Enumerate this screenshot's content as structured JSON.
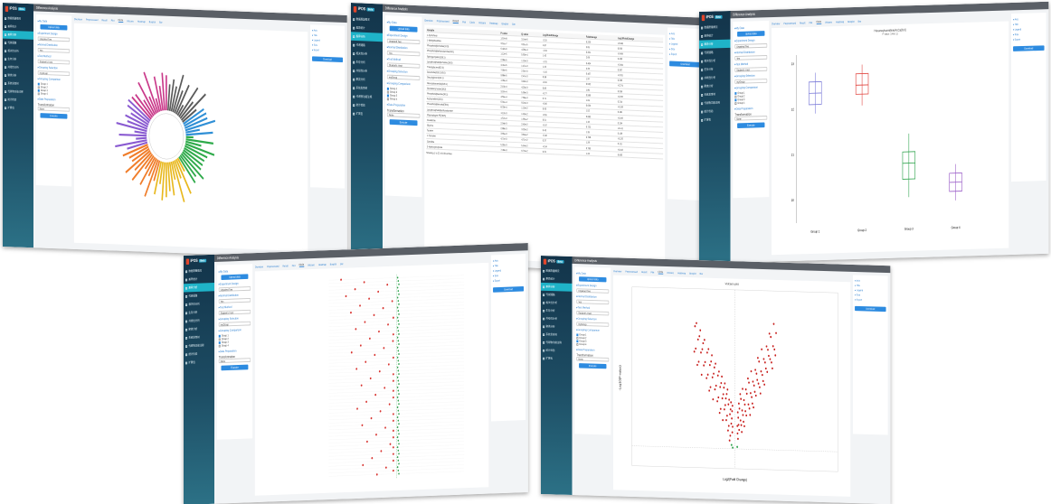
{
  "app": {
    "logo": "iPOS",
    "logo_tag": "Beta",
    "header_title": "Difference Analysis"
  },
  "sidebar_items": [
    "数据质量概况",
    "差异统计",
    "差异分析",
    "代谢通路",
    "相关性分析",
    "生存分析",
    "共线性分析",
    "聚类分析",
    "系统发育树",
    "代谢物功能注释",
    "统计检验",
    "扩展包"
  ],
  "panel": {
    "my_data": "My Data",
    "upload": "Upload data",
    "exp_design": "Experiment Design",
    "exp_value": "Unpaired Two",
    "normal": "Normal Distribution",
    "normal_value": "Yes",
    "test": "Test Method",
    "test_value": "Student's t test",
    "grouping": "Grouping Selection",
    "grouping_value": "myGroup",
    "comparison": "Grouping Comparison",
    "groups": [
      "Group 1",
      "Group 2",
      "Group 3",
      "Group 4"
    ],
    "prep": "Data Preparation",
    "transform": "Transformation",
    "transform_value": "None",
    "execute": "Execute"
  },
  "tabs": [
    "Overview",
    "Preprocessed",
    "Result",
    "Plot",
    "Circle",
    "Volcano",
    "Heatmap",
    "Boxplot",
    "Bar"
  ],
  "options": {
    "items": [
      "Axis",
      "Title",
      "Legend",
      "Size",
      "Export"
    ],
    "download": "Download"
  },
  "table": {
    "headers": [
      "Variable",
      "P-value",
      "Q-value",
      "Log2FoldChange",
      "FoldChange",
      "Log10FoldChange"
    ],
    "rows": [
      [
        "1-Cyclohexy",
        "1.57e-8",
        "3.14e-6",
        "-2.15",
        "0.225",
        "-0.648"
      ],
      [
        "1-Methylhistidine",
        "3.51e-7",
        "3.51e-5",
        "1.87",
        "3.65",
        "0.563"
      ],
      [
        "Phosphatidylcholine(16:0)",
        "6.42e-6",
        "4.28e-4",
        "-1.64",
        "0.321",
        "-0.494"
      ],
      [
        "Phosphatidylethanolamine(18:1)",
        "1.12e-5",
        "5.60e-4",
        "1.43",
        "2.69",
        "0.430"
      ],
      [
        "Sphingomyelin(d18:1)",
        "2.98e-5",
        "1.19e-3",
        "-1.31",
        "0.404",
        "-0.394"
      ],
      [
        "Lysophosphatidylcholine(18:0)",
        "4.41e-5",
        "1.47e-3",
        "1.22",
        "2.33",
        "0.367"
      ],
      [
        "Triacylglycerol(52:2)",
        "7.05e-5",
        "2.01e-3",
        "-1.10",
        "0.467",
        "-0.331"
      ],
      [
        "Ceramide(d18:1/16:0)",
        "9.88e-5",
        "2.47e-3",
        "0.98",
        "1.97",
        "0.295"
      ],
      [
        "Diacylglycerol(34:1)",
        "1.36e-4",
        "3.02e-3",
        "-0.91",
        "0.532",
        "-0.274"
      ],
      [
        "Hexosylceramide(d18:1)",
        "2.10e-4",
        "4.20e-3",
        "0.85",
        "1.80",
        "0.256"
      ],
      [
        "Cholesteryl ester(18:2)",
        "3.07e-4",
        "5.58e-3",
        "-0.77",
        "0.586",
        "-0.232"
      ],
      [
        "Phosphatidylserine(36:1)",
        "4.55e-4",
        "7.58e-3",
        "0.71",
        "1.64",
        "0.214"
      ],
      [
        "Acylcarnitine(16:0)",
        "6.01e-4",
        "9.24e-3",
        "-0.66",
        "0.633",
        "-0.199"
      ],
      [
        "Phosphatidylinositol(38:4)",
        "8.33e-4",
        "1.19e-2",
        "0.60",
        "1.52",
        "0.181"
      ],
      [
        "Lysophosphatidylethanolamine",
        "1.12e-3",
        "1.49e-2",
        "-0.55",
        "0.683",
        "-0.166"
      ],
      [
        "Plasmalogen PE(38:5)",
        "1.57e-3",
        "1.96e-2",
        "0.51",
        "1.42",
        "0.154"
      ],
      [
        "Creatinine",
        "2.04e-3",
        "2.40e-2",
        "-0.47",
        "0.722",
        "-0.141"
      ],
      [
        "Glycine",
        "2.88e-3",
        "3.20e-2",
        "0.43",
        "1.35",
        "0.129"
      ],
      [
        "Taurine",
        "3.65e-3",
        "3.84e-2",
        "-0.40",
        "0.758",
        "-0.120"
      ],
      [
        "L-Tyrosine",
        "4.71e-3",
        "4.71e-2",
        "0.37",
        "1.29",
        "0.111"
      ],
      [
        "Citrulline",
        "5.92e-3",
        "5.64e-2",
        "-0.34",
        "0.790",
        "-0.102"
      ],
      [
        "3-Hydroxybutyrate",
        "7.40e-3",
        "6.73e-2",
        "0.31",
        "1.24",
        "0.093"
      ]
    ],
    "footer": "Showing 1 to 22 of 100 entries"
  },
  "box_plot": {
    "title": "Hexanoylcarnitine(AcCa(6:0)",
    "subtitle": "P-value: 3.46e-11",
    "ylabel": "",
    "groups": [
      "Group 1",
      "Group 2",
      "Group 3",
      "Group 4"
    ]
  },
  "volcano": {
    "title": "Volcano plot",
    "xlabel": "Log2(Fold Change)",
    "ylabel": "-Log10(P-value)"
  },
  "colors": {
    "sidebar": "#1d4d64",
    "accent": "#2d8be0",
    "active": "#1fb3c8",
    "header": "#5a5f66"
  },
  "chart_data": [
    {
      "type": "bar",
      "title": "",
      "categories": [],
      "values": []
    },
    {
      "type": "box",
      "title": "Hexanoylcarnitine(AcCa(6:0)",
      "categories": [
        "Group 1",
        "Group 2",
        "Group 3",
        "Group 4"
      ],
      "series": [
        {
          "name": "Group 1",
          "q1": 22.1,
          "median": 22.35,
          "q3": 22.6,
          "min": 21.9,
          "max": 22.8
        },
        {
          "name": "Group 2",
          "q1": 22.3,
          "median": 22.5,
          "q3": 22.75,
          "min": 22.05,
          "max": 22.95
        },
        {
          "name": "Group 3",
          "q1": 20.4,
          "median": 20.75,
          "q3": 21.0,
          "min": 20.0,
          "max": 21.4
        },
        {
          "name": "Group 4",
          "q1": 20.1,
          "median": 20.3,
          "q3": 20.5,
          "min": 19.9,
          "max": 20.7
        }
      ],
      "ylim": [
        19.5,
        23.2
      ]
    },
    {
      "type": "scatter",
      "title": "Volcano plot"
    }
  ]
}
